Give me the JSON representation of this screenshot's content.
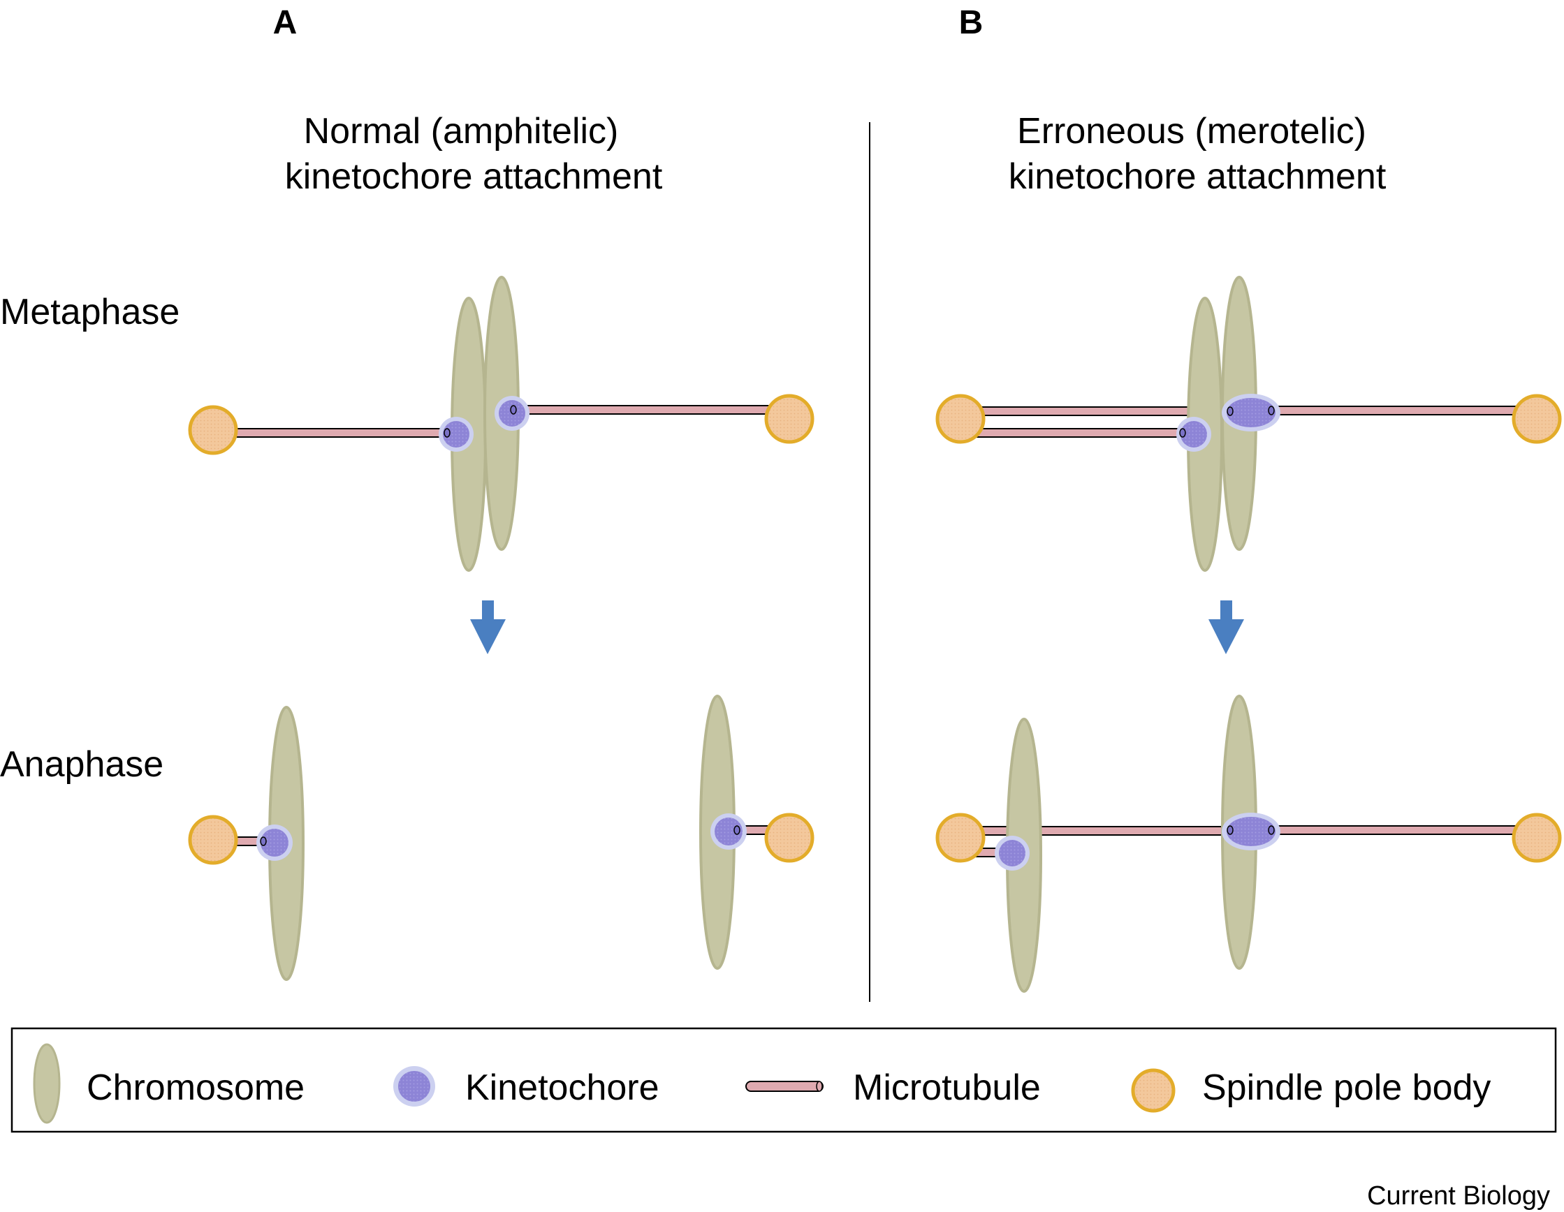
{
  "panels": [
    {
      "letter": "A",
      "title_line1": "Normal (amphitelic)",
      "title_line2": "kinetochore attachment"
    },
    {
      "letter": "B",
      "title_line1": "Erroneous (merotelic)",
      "title_line2": "kinetochore attachment"
    }
  ],
  "phases": {
    "metaphase": "Metaphase",
    "anaphase": "Anaphase"
  },
  "legend": [
    {
      "label": "Chromosome",
      "icon": "chromosome-icon"
    },
    {
      "label": "Kinetochore",
      "icon": "kinetochore-icon"
    },
    {
      "label": "Microtubule",
      "icon": "microtubule-icon"
    },
    {
      "label": "Spindle pole body",
      "icon": "spindle-pole-body-icon"
    }
  ],
  "journal": "Current Biology",
  "colors": {
    "chromosome": "#c6c6a3",
    "chromosome_stroke": "#b5b58f",
    "kinetochore": "#8d84d6",
    "kinetochore_halo": "#ccd0f0",
    "microtubule": "#dfaab0",
    "spindle_pole": "#f3c89c",
    "spindle_pole_ring": "#e3ac2a",
    "arrow": "#4a7fc1",
    "text": "#000000"
  }
}
